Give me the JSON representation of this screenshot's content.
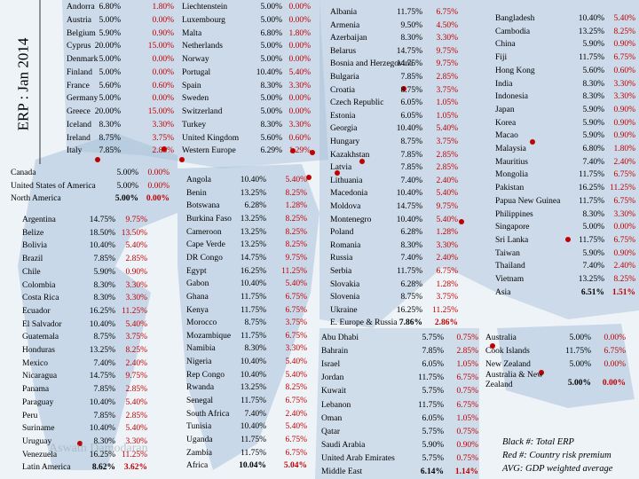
{
  "title": "ERP : Jan 2014",
  "tables": [
    {
      "rows": [
        [
          "Andorra",
          "6.80%",
          "1.80%"
        ],
        [
          "Austria",
          "5.00%",
          "0.00%"
        ],
        [
          "Belgium",
          "5.90%",
          "0.90%"
        ],
        [
          "Cyprus",
          "20.00%",
          "15.00%"
        ],
        [
          "Denmark",
          "5.00%",
          "0.00%"
        ],
        [
          "Finland",
          "5.00%",
          "0.00%"
        ],
        [
          "France",
          "5.60%",
          "0.60%"
        ],
        [
          "Germany",
          "5.00%",
          "0.00%"
        ],
        [
          "Greece",
          "20.00%",
          "15.00%"
        ],
        [
          "Iceland",
          "8.30%",
          "3.30%"
        ],
        [
          "Ireland",
          "8.75%",
          "3.75%"
        ],
        [
          "Italy",
          "7.85%",
          "2.85%"
        ]
      ]
    },
    {
      "rows": [
        [
          "Liechtenstein",
          "5.00%",
          "0.00%"
        ],
        [
          "Luxembourg",
          "5.00%",
          "0.00%"
        ],
        [
          "Malta",
          "6.80%",
          "1.80%"
        ],
        [
          "Netherlands",
          "5.00%",
          "0.00%"
        ],
        [
          "Norway",
          "5.00%",
          "0.00%"
        ],
        [
          "Portugal",
          "10.40%",
          "5.40%"
        ],
        [
          "Spain",
          "8.30%",
          "3.30%"
        ],
        [
          "Sweden",
          "5.00%",
          "0.00%"
        ],
        [
          "Switzerland",
          "5.00%",
          "0.00%"
        ],
        [
          "Turkey",
          "8.30%",
          "3.30%"
        ],
        [
          "United Kingdom",
          "5.60%",
          "0.60%"
        ],
        [
          "Western Europe",
          "6.29%",
          "1.29%"
        ]
      ]
    },
    {
      "rows": [
        [
          "Canada",
          "5.00%",
          "0.00%"
        ],
        [
          "United States of America",
          "5.00%",
          "0.00%"
        ],
        [
          "North America",
          "5.00%",
          "0.00%"
        ]
      ]
    },
    {
      "rows": [
        [
          "Argentina",
          "14.75%",
          "9.75%"
        ],
        [
          "Belize",
          "18.50%",
          "13.50%"
        ],
        [
          "Bolivia",
          "10.40%",
          "5.40%"
        ],
        [
          "Brazil",
          "7.85%",
          "2.85%"
        ],
        [
          "Chile",
          "5.90%",
          "0.90%"
        ],
        [
          "Colombia",
          "8.30%",
          "3.30%"
        ],
        [
          "Costa Rica",
          "8.30%",
          "3.30%"
        ],
        [
          "Ecuador",
          "16.25%",
          "11.25%"
        ],
        [
          "El Salvador",
          "10.40%",
          "5.40%"
        ],
        [
          "Guatemala",
          "8.75%",
          "3.75%"
        ],
        [
          "Honduras",
          "13.25%",
          "8.25%"
        ],
        [
          "Mexico",
          "7.40%",
          "2.40%"
        ],
        [
          "Nicaragua",
          "14.75%",
          "9.75%"
        ],
        [
          "Panama",
          "7.85%",
          "2.85%"
        ],
        [
          "Paraguay",
          "10.40%",
          "5.40%"
        ],
        [
          "Peru",
          "7.85%",
          "2.85%"
        ],
        [
          "Suriname",
          "10.40%",
          "5.40%"
        ],
        [
          "Uruguay",
          "8.30%",
          "3.30%"
        ],
        [
          "Venezuela",
          "16.25%",
          "11.25%"
        ],
        [
          "Latin America",
          "8.62%",
          "3.62%"
        ]
      ]
    },
    {
      "rows": [
        [
          "Angola",
          "10.40%",
          "5.40%"
        ],
        [
          "Benin",
          "13.25%",
          "8.25%"
        ],
        [
          "Botswana",
          "6.28%",
          "1.28%"
        ],
        [
          "Burkina Faso",
          "13.25%",
          "8.25%"
        ],
        [
          "Cameroon",
          "13.25%",
          "8.25%"
        ],
        [
          "Cape Verde",
          "13.25%",
          "8.25%"
        ],
        [
          "DR Congo",
          "14.75%",
          "9.75%"
        ],
        [
          "Egypt",
          "16.25%",
          "11.25%"
        ],
        [
          "Gabon",
          "10.40%",
          "5.40%"
        ],
        [
          "Ghana",
          "11.75%",
          "6.75%"
        ],
        [
          "Kenya",
          "11.75%",
          "6.75%"
        ],
        [
          "Morocco",
          "8.75%",
          "3.75%"
        ],
        [
          "Mozambique",
          "11.75%",
          "6.75%"
        ],
        [
          "Namibia",
          "8.30%",
          "3.30%"
        ],
        [
          "Nigeria",
          "10.40%",
          "5.40%"
        ],
        [
          "Rep Congo",
          "10.40%",
          "5.40%"
        ],
        [
          "Rwanda",
          "13.25%",
          "8.25%"
        ],
        [
          "Senegal",
          "11.75%",
          "6.75%"
        ],
        [
          "South Africa",
          "7.40%",
          "2.40%"
        ],
        [
          "Tunisia",
          "10.40%",
          "5.40%"
        ],
        [
          "Uganda",
          "11.75%",
          "6.75%"
        ],
        [
          "Zambia",
          "11.75%",
          "6.75%"
        ],
        [
          "Africa",
          "10.04%",
          "5.04%"
        ]
      ]
    },
    {
      "rows": [
        [
          "Albania",
          "11.75%",
          "6.75%"
        ],
        [
          "Armenia",
          "9.50%",
          "4.50%"
        ],
        [
          "Azerbaijan",
          "8.30%",
          "3.30%"
        ],
        [
          "Belarus",
          "14.75%",
          "9.75%"
        ],
        [
          "Bosnia and Herzegovina",
          "14.75%",
          "9.75%"
        ],
        [
          "Bulgaria",
          "7.85%",
          "2.85%"
        ],
        [
          "Croatia",
          "8.75%",
          "3.75%"
        ],
        [
          "Czech Republic",
          "6.05%",
          "1.05%"
        ],
        [
          "Estonia",
          "6.05%",
          "1.05%"
        ],
        [
          "Georgia",
          "10.40%",
          "5.40%"
        ],
        [
          "Hungary",
          "8.75%",
          "3.75%"
        ],
        [
          "Kazakhstan",
          "7.85%",
          "2.85%"
        ],
        [
          "Latvia",
          "7.85%",
          "2.85%"
        ],
        [
          "Lithuania",
          "7.40%",
          "2.40%"
        ],
        [
          "Macedonia",
          "10.40%",
          "5.40%"
        ],
        [
          "Moldova",
          "14.75%",
          "9.75%"
        ],
        [
          "Montenegro",
          "10.40%",
          "5.40%"
        ],
        [
          "Poland",
          "6.28%",
          "1.28%"
        ],
        [
          "Romania",
          "8.30%",
          "3.30%"
        ],
        [
          "Russia",
          "7.40%",
          "2.40%"
        ],
        [
          "Serbia",
          "11.75%",
          "6.75%"
        ],
        [
          "Slovakia",
          "6.28%",
          "1.28%"
        ],
        [
          "Slovenia",
          "8.75%",
          "3.75%"
        ],
        [
          "Ukraine",
          "16.25%",
          "11.25%"
        ],
        [
          "E. Europe & Russia",
          "7.86%",
          "2.86%"
        ]
      ]
    },
    {
      "rows": [
        [
          "Abu Dhabi",
          "5.75%",
          "0.75%"
        ],
        [
          "Bahrain",
          "7.85%",
          "2.85%"
        ],
        [
          "Israel",
          "6.05%",
          "1.05%"
        ],
        [
          "Jordan",
          "11.75%",
          "6.75%"
        ],
        [
          "Kuwait",
          "5.75%",
          "0.75%"
        ],
        [
          "Lebanon",
          "11.75%",
          "6.75%"
        ],
        [
          "Oman",
          "6.05%",
          "1.05%"
        ],
        [
          "Qatar",
          "5.75%",
          "0.75%"
        ],
        [
          "Saudi Arabia",
          "5.90%",
          "0.90%"
        ],
        [
          "United Arab Emirates",
          "5.75%",
          "0.75%"
        ],
        [
          "Middle East",
          "6.14%",
          "1.14%"
        ]
      ]
    },
    {
      "rows": [
        [
          "Bangladesh",
          "10.40%",
          "5.40%"
        ],
        [
          "Cambodia",
          "13.25%",
          "8.25%"
        ],
        [
          "China",
          "5.90%",
          "0.90%"
        ],
        [
          "Fiji",
          "11.75%",
          "6.75%"
        ],
        [
          "Hong Kong",
          "5.60%",
          "0.60%"
        ],
        [
          "India",
          "8.30%",
          "3.30%"
        ],
        [
          "Indonesia",
          "8.30%",
          "3.30%"
        ],
        [
          "Japan",
          "5.90%",
          "0.90%"
        ],
        [
          "Korea",
          "5.90%",
          "0.90%"
        ],
        [
          "Macao",
          "5.90%",
          "0.90%"
        ],
        [
          "Malaysia",
          "6.80%",
          "1.80%"
        ],
        [
          "Mauritius",
          "7.40%",
          "2.40%"
        ],
        [
          "Mongolia",
          "11.75%",
          "6.75%"
        ],
        [
          "Pakistan",
          "16.25%",
          "11.25%"
        ],
        [
          "Papua New Guinea",
          "11.75%",
          "6.75%"
        ],
        [
          "Philippines",
          "8.30%",
          "3.30%"
        ],
        [
          "Singapore",
          "5.00%",
          "0.00%"
        ],
        [
          "Sri Lanka",
          "11.75%",
          "6.75%"
        ],
        [
          "Taiwan",
          "5.90%",
          "0.90%"
        ],
        [
          "Thailand",
          "7.40%",
          "2.40%"
        ],
        [
          "Vietnam",
          "13.25%",
          "8.25%"
        ],
        [
          "Asia",
          "6.51%",
          "1.51%"
        ]
      ]
    },
    {
      "rows": [
        [
          "Australia",
          "5.00%",
          "0.00%"
        ],
        [
          "Cook Islands",
          "11.75%",
          "6.75%"
        ],
        [
          "New Zealand",
          "5.00%",
          "0.00%"
        ],
        [
          "Australia & New Zealand",
          "5.00%",
          "0.00%"
        ]
      ]
    }
  ],
  "legend": [
    "Black #: Total ERP",
    "Red #: Country risk premium",
    "AVG: GDP weighted average"
  ],
  "watermark": "Aswath Damodaran"
}
